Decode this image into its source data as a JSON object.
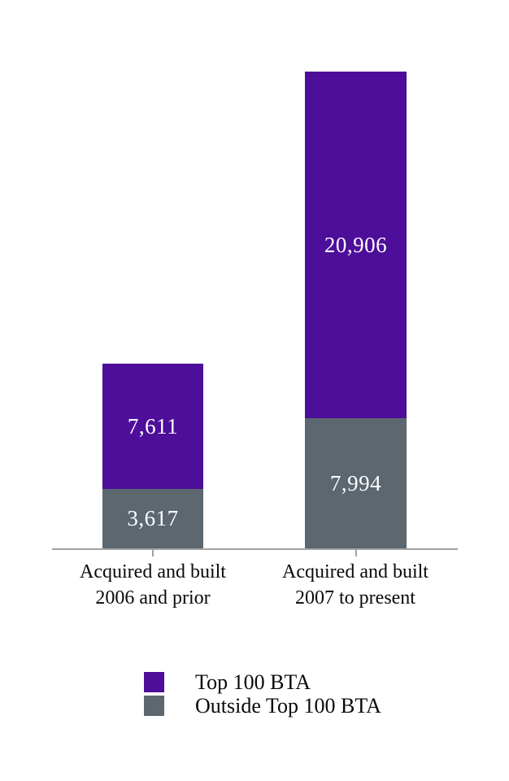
{
  "chart_data": {
    "type": "bar",
    "subtype": "stacked",
    "orientation": "vertical",
    "categories": [
      "Acquired and built 2006 and prior",
      "Acquired and built 2007 to present"
    ],
    "series": [
      {
        "name": "Top 100 BTA",
        "color": "#4D0E99",
        "values": [
          7611,
          20906
        ]
      },
      {
        "name": "Outside Top 100 BTA",
        "color": "#5C6770",
        "values": [
          3617,
          7994
        ]
      }
    ],
    "stack_totals": [
      11228,
      28900
    ],
    "value_labels_visible": true,
    "title": "",
    "xlabel": "",
    "ylabel": "",
    "y_axis_visible": false,
    "gridlines": false,
    "legend_position": "bottom"
  },
  "bars": {
    "bar1": {
      "label_line1": "Acquired and built",
      "label_line2": "2006 and prior",
      "top_value": "7,611",
      "bottom_value": "3,617"
    },
    "bar2": {
      "label_line1": "Acquired and built",
      "label_line2": "2007 to present",
      "top_value": "20,906",
      "bottom_value": "7,994"
    }
  },
  "legend": {
    "items": [
      {
        "label": "Top 100 BTA",
        "color": "#4D0E99"
      },
      {
        "label": "Outside Top 100 BTA",
        "color": "#5C6770"
      }
    ]
  },
  "colors": {
    "top_100_bta": "#4D0E99",
    "outside_top_100_bta": "#5C6770",
    "axis_line": "#A2A2A2",
    "value_text": "#FFFFFF",
    "label_text": "#0A0A0A",
    "background": "#FFFFFF"
  }
}
